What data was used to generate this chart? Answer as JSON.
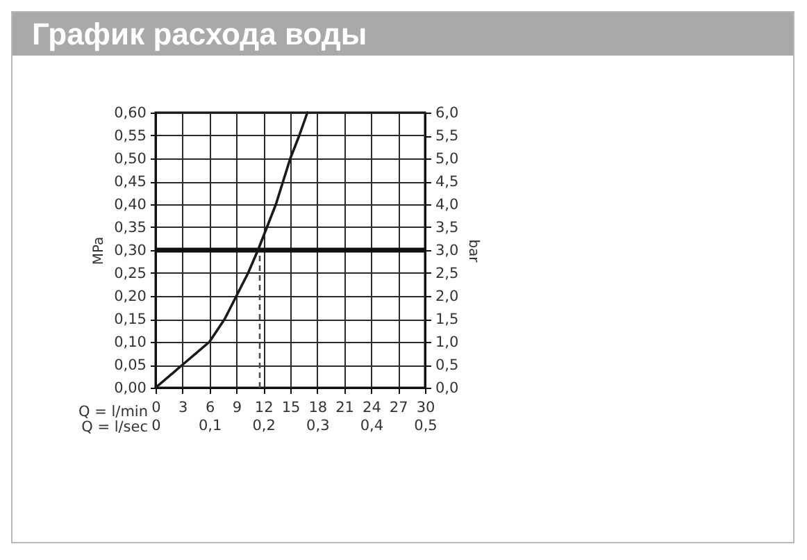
{
  "chart_data": {
    "type": "line",
    "title": "График расхода воды",
    "xlabel": "Q = l/min",
    "ylabel": "MPa",
    "y2label": "bar",
    "x2label": "Q = l/sec",
    "xlim": [
      0,
      30
    ],
    "xticks": [
      0,
      3,
      6,
      9,
      12,
      15,
      18,
      21,
      24,
      27,
      30
    ],
    "x2lim": [
      0,
      0.5
    ],
    "x2ticks": [
      0,
      {
        "value": 0.1,
        "label": "0,1"
      },
      {
        "value": 0.2,
        "label": "0,2"
      },
      {
        "value": 0.3,
        "label": "0,3"
      },
      {
        "value": 0.4,
        "label": "0,4"
      },
      {
        "value": 0.5,
        "label": "0,5"
      }
    ],
    "ylim": [
      0,
      0.6
    ],
    "yticks": [
      {
        "value": 0,
        "label": "0,00"
      },
      {
        "value": 0.05,
        "label": "0,05"
      },
      {
        "value": 0.1,
        "label": "0,10"
      },
      {
        "value": 0.15,
        "label": "0,15"
      },
      {
        "value": 0.2,
        "label": "0,20"
      },
      {
        "value": 0.25,
        "label": "0,25"
      },
      {
        "value": 0.3,
        "label": "0,30"
      },
      {
        "value": 0.35,
        "label": "0,35"
      },
      {
        "value": 0.4,
        "label": "0,40"
      },
      {
        "value": 0.45,
        "label": "0,45"
      },
      {
        "value": 0.5,
        "label": "0,50"
      },
      {
        "value": 0.55,
        "label": "0,55"
      },
      {
        "value": 0.6,
        "label": "0,60"
      }
    ],
    "y2lim": [
      0,
      6
    ],
    "y2ticks": [
      {
        "value": 0,
        "label": "0,0"
      },
      {
        "value": 0.5,
        "label": "0,5"
      },
      {
        "value": 1,
        "label": "1,0"
      },
      {
        "value": 1.5,
        "label": "1,5"
      },
      {
        "value": 2,
        "label": "2,0"
      },
      {
        "value": 2.5,
        "label": "2,5"
      },
      {
        "value": 3,
        "label": "3,0"
      },
      {
        "value": 3.5,
        "label": "3,5"
      },
      {
        "value": 4,
        "label": "4,0"
      },
      {
        "value": 4.5,
        "label": "4,5"
      },
      {
        "value": 5,
        "label": "5,0"
      },
      {
        "value": 5.5,
        "label": "5,5"
      },
      {
        "value": 6,
        "label": "6,0"
      }
    ],
    "grid": true,
    "series": [
      {
        "color": "#1a1a1a",
        "x": [
          0,
          3,
          6,
          7.7,
          9,
          10.3,
          11.4,
          12.4,
          13.4,
          14.2,
          15,
          16,
          16.9
        ],
        "values": [
          0,
          0.05,
          0.1,
          0.15,
          0.2,
          0.25,
          0.3,
          0.35,
          0.4,
          0.45,
          0.5,
          0.55,
          0.6
        ]
      },
      {
        "type": "line",
        "color": "#4d4d4d",
        "line_style": "dashed",
        "x": [
          11.6,
          11.6
        ],
        "values": [
          0,
          0.3
        ]
      }
    ],
    "ref_lines": [
      {
        "axis": "y",
        "value": 0.3,
        "color": "#111111"
      }
    ]
  }
}
